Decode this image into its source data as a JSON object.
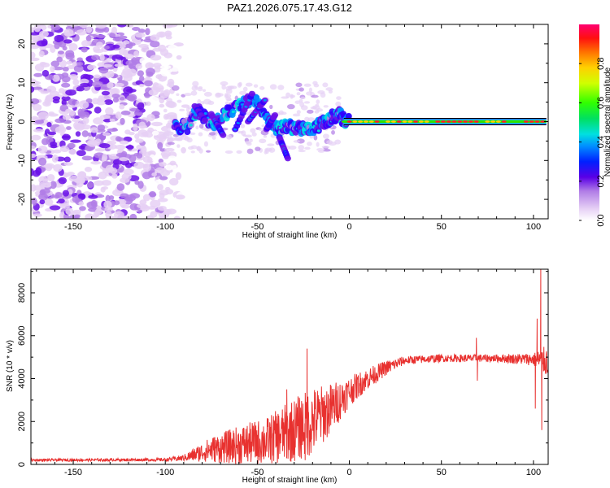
{
  "title": "PAZ1.2026.075.17.43.G12",
  "chart_data": [
    {
      "type": "heatmap",
      "title": "PAZ1.2026.075.17.43.G12",
      "xlabel": "Height of straight line (km)",
      "ylabel": "Frequency (Hz)",
      "xlim": [
        -173,
        108
      ],
      "ylim": [
        -25,
        25
      ],
      "xticks": [
        -150,
        -100,
        -50,
        0,
        50,
        100
      ],
      "yticks": [
        -20,
        -10,
        0,
        10,
        20
      ],
      "colorbar": {
        "label": "Normalized spectral amplitude",
        "range": [
          0,
          1
        ],
        "ticks": [
          0.0,
          0.2,
          0.4,
          0.6,
          0.8
        ]
      },
      "noise_region_x": [
        -173,
        -95
      ],
      "signal_track": [
        {
          "x": -95,
          "y": -1.5
        },
        {
          "x": -88,
          "y": -1.2
        },
        {
          "x": -82,
          "y": 3
        },
        {
          "x": -75,
          "y": -1
        },
        {
          "x": -68,
          "y": 2
        },
        {
          "x": -60,
          "y": 4
        },
        {
          "x": -52,
          "y": 6
        },
        {
          "x": -45,
          "y": 1
        },
        {
          "x": -40,
          "y": -2
        },
        {
          "x": -35,
          "y": -1
        },
        {
          "x": -30,
          "y": -1.5
        },
        {
          "x": -25,
          "y": -2
        },
        {
          "x": -20,
          "y": -2
        },
        {
          "x": -15,
          "y": -0.5
        },
        {
          "x": -10,
          "y": 1
        },
        {
          "x": -6,
          "y": 2
        },
        {
          "x": -3,
          "y": 0.5
        },
        {
          "x": 0,
          "y": 0
        },
        {
          "x": 108,
          "y": 0
        }
      ],
      "stable_line": {
        "x_start": -3,
        "x_end": 107,
        "y": 0
      }
    },
    {
      "type": "line",
      "xlabel": "Height of straight line (km)",
      "ylabel": "SNR (10 * v/v)",
      "xlim": [
        -173,
        108
      ],
      "ylim": [
        0,
        9100
      ],
      "xticks": [
        -150,
        -100,
        -50,
        0,
        50,
        100
      ],
      "yticks": [
        0,
        2000,
        4000,
        6000,
        8000
      ],
      "color": "#e8312f",
      "envelope": [
        {
          "x": -173,
          "mean": 200,
          "noise": 60
        },
        {
          "x": -100,
          "mean": 220,
          "noise": 70
        },
        {
          "x": -90,
          "mean": 300,
          "noise": 150
        },
        {
          "x": -75,
          "mean": 700,
          "noise": 600
        },
        {
          "x": -60,
          "mean": 900,
          "noise": 900
        },
        {
          "x": -45,
          "mean": 1100,
          "noise": 1100
        },
        {
          "x": -30,
          "mean": 1600,
          "noise": 1500
        },
        {
          "x": -20,
          "mean": 2000,
          "noise": 1600
        },
        {
          "x": -10,
          "mean": 2600,
          "noise": 1200
        },
        {
          "x": 0,
          "mean": 3400,
          "noise": 700
        },
        {
          "x": 10,
          "mean": 4000,
          "noise": 500
        },
        {
          "x": 20,
          "mean": 4500,
          "noise": 350
        },
        {
          "x": 30,
          "mean": 4850,
          "noise": 200
        },
        {
          "x": 50,
          "mean": 4950,
          "noise": 180
        },
        {
          "x": 80,
          "mean": 4950,
          "noise": 180
        },
        {
          "x": 100,
          "mean": 4900,
          "noise": 300
        },
        {
          "x": 108,
          "mean": 4800,
          "noise": 800
        }
      ],
      "spikes": [
        {
          "x": -23,
          "y": 5400
        },
        {
          "x": -24,
          "y": 200
        },
        {
          "x": -34,
          "y": 3500
        },
        {
          "x": 69,
          "y": 5900
        },
        {
          "x": 69.5,
          "y": 3900
        },
        {
          "x": 104,
          "y": 9100
        },
        {
          "x": 104.5,
          "y": 1600
        },
        {
          "x": 102,
          "y": 6800
        },
        {
          "x": 101,
          "y": 2600
        }
      ]
    }
  ]
}
